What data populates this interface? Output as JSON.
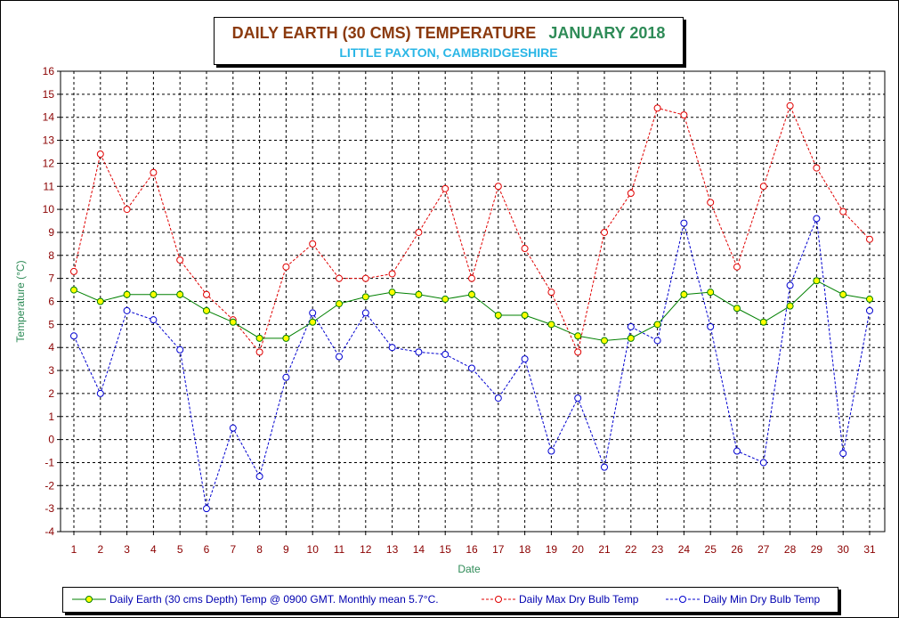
{
  "chart_data": {
    "type": "line",
    "title": "DAILY EARTH (30 CMS) TEMPERATURE",
    "title_month": "JANUARY 2018",
    "subtitle": "LITTLE PAXTON, CAMBRIDGESHIRE",
    "xlabel": "Date",
    "ylabel": "Temperature (°C)",
    "ylim": [
      -4,
      16
    ],
    "yticks": [
      "-4",
      "-3",
      "-2",
      "-1",
      "0",
      "1",
      "2",
      "3",
      "4",
      "5",
      "6",
      "7",
      "8",
      "9",
      "10",
      "11",
      "12",
      "13",
      "14",
      "15",
      "16"
    ],
    "categories": [
      "1",
      "2",
      "3",
      "4",
      "5",
      "6",
      "7",
      "8",
      "9",
      "10",
      "11",
      "12",
      "13",
      "14",
      "15",
      "16",
      "17",
      "18",
      "19",
      "20",
      "21",
      "22",
      "23",
      "24",
      "25",
      "26",
      "27",
      "28",
      "29",
      "30",
      "31"
    ],
    "grid": true,
    "legend_position": "bottom",
    "series": [
      {
        "name": "Daily Earth (30 cms Depth) Temp @ 0900 GMT. Monthly mean 5.7°C.",
        "color": "#008000",
        "marker_fill": "#ffff00",
        "style": "solid",
        "values": [
          6.5,
          6.0,
          6.3,
          6.3,
          6.3,
          5.6,
          5.1,
          4.4,
          4.4,
          5.1,
          5.9,
          6.2,
          6.4,
          6.3,
          6.1,
          6.3,
          5.4,
          5.4,
          5.0,
          4.5,
          4.3,
          4.4,
          5.0,
          6.3,
          6.4,
          5.7,
          5.1,
          5.8,
          6.9,
          6.3,
          6.1
        ]
      },
      {
        "name": "Daily Max Dry Bulb Temp",
        "color": "#e00000",
        "marker_fill": "#ffffff",
        "style": "dashed",
        "values": [
          7.3,
          12.4,
          10.0,
          11.6,
          7.8,
          6.3,
          5.2,
          3.8,
          7.5,
          8.5,
          7.0,
          7.0,
          7.2,
          9.0,
          10.9,
          7.0,
          11.0,
          8.3,
          6.4,
          3.8,
          9.0,
          10.7,
          14.4,
          14.1,
          10.3,
          7.5,
          11.0,
          14.5,
          11.8,
          9.9,
          8.7
        ]
      },
      {
        "name": "Daily Min Dry Bulb Temp",
        "color": "#0000d0",
        "marker_fill": "#ffffff",
        "style": "dashed",
        "values": [
          4.5,
          2.0,
          5.6,
          5.2,
          3.9,
          -3.0,
          0.5,
          -1.6,
          2.7,
          5.5,
          3.6,
          5.5,
          4.0,
          3.8,
          3.7,
          3.1,
          1.8,
          3.5,
          -0.5,
          1.8,
          -1.2,
          4.9,
          4.3,
          9.4,
          4.9,
          -0.5,
          -1.0,
          6.7,
          9.6,
          -0.6,
          5.6
        ]
      }
    ]
  }
}
